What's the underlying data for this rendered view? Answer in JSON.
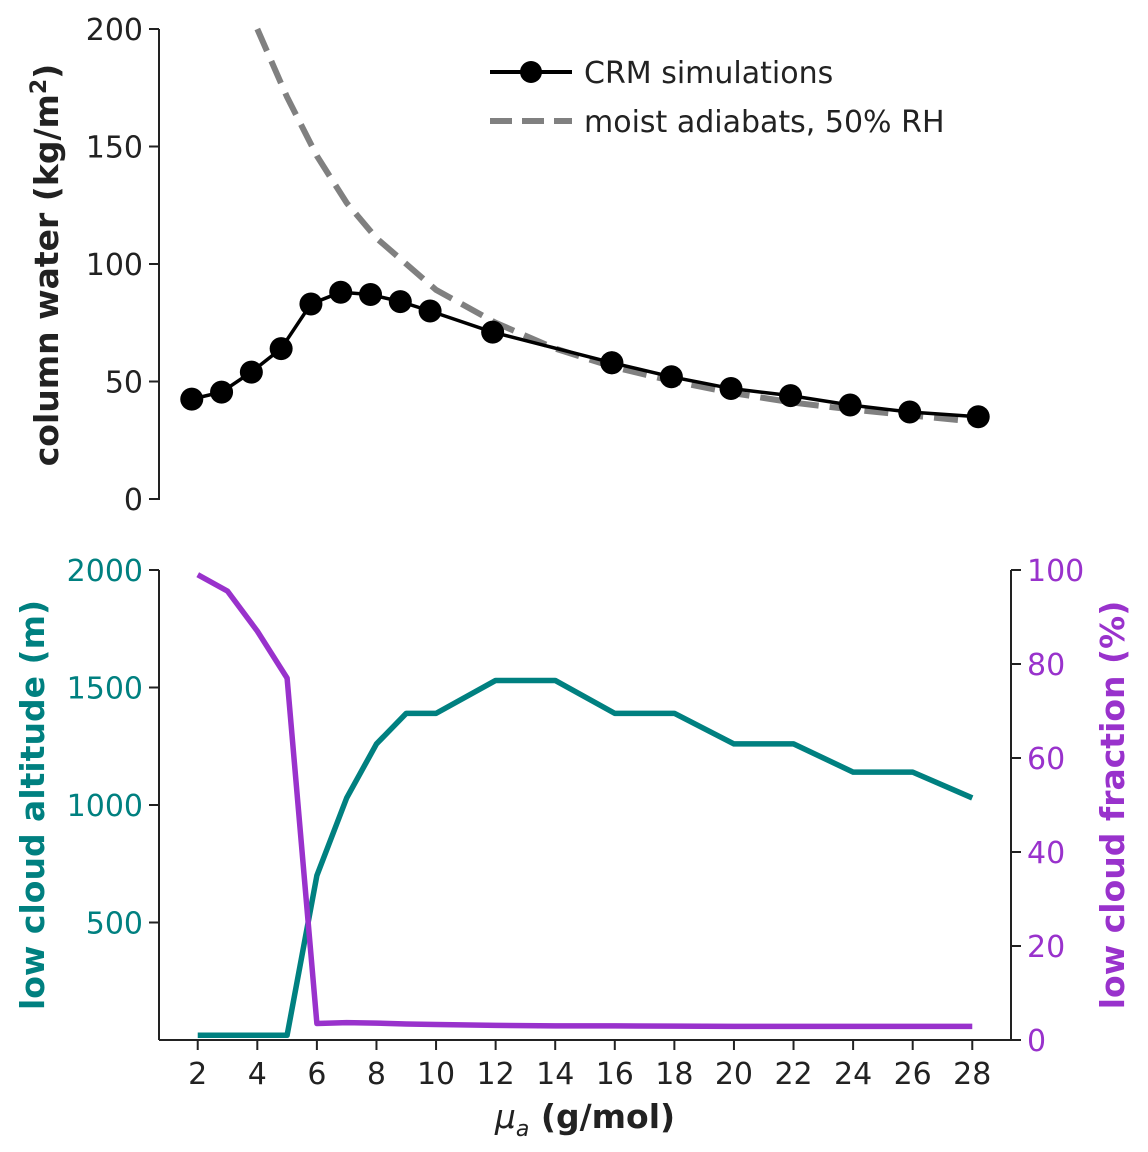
{
  "colors": {
    "text": "#222222",
    "axis": "#222222",
    "crm": "#000000",
    "adiabat": "#808080",
    "altitude": "#008080",
    "fraction": "#9932cc"
  },
  "chart_data": [
    {
      "type": "line",
      "id": "column-water",
      "title": "",
      "ylabel": "column water (kg/m",
      "ylabel_sup": "2",
      "ylabel_close": ")",
      "ylim": [
        0,
        200
      ],
      "xlim": [
        0.7,
        29.3
      ],
      "yticks": [
        0,
        50,
        100,
        150,
        200
      ],
      "legend": {
        "position": "top-right",
        "entries": [
          "CRM simulations",
          "moist adiabats, 50% RH"
        ]
      },
      "series": [
        {
          "name": "CRM simulations",
          "style": "solid-markers",
          "x": [
            1.8,
            2.8,
            3.8,
            4.8,
            5.8,
            6.8,
            7.8,
            8.8,
            9.8,
            11.9,
            15.9,
            15.9,
            17.9,
            19.9,
            21.9,
            23.9,
            25.9,
            28.2
          ],
          "y": [
            42.5,
            45.5,
            54,
            64,
            83,
            88,
            87,
            84,
            80,
            71,
            58,
            58,
            52,
            47,
            44,
            40,
            37,
            35
          ]
        },
        {
          "name": "moist adiabats, 50% RH",
          "style": "dashed",
          "x": [
            4,
            5,
            6,
            7,
            8,
            10,
            12,
            14,
            16,
            18,
            20,
            22,
            24,
            26,
            28
          ],
          "y": [
            200,
            171,
            146,
            126,
            111,
            89,
            75,
            64,
            56,
            50,
            45,
            41,
            38,
            35.5,
            33
          ]
        }
      ]
    },
    {
      "type": "line",
      "id": "low-cloud",
      "xlabel_symbol": "μ",
      "xlabel_sub": "a",
      "xlabel_rest": " (g/mol)",
      "ylabel_left": "low cloud altitude (m)",
      "ylabel_right": "low cloud fraction (%)",
      "xlim": [
        0.7,
        29.3
      ],
      "ylim_left": [
        0,
        2000
      ],
      "ylim_right": [
        0,
        100
      ],
      "xticks": [
        2,
        4,
        6,
        8,
        10,
        12,
        14,
        16,
        18,
        20,
        22,
        24,
        26,
        28
      ],
      "yticks_left": [
        500,
        1000,
        1500,
        2000
      ],
      "yticks_right": [
        0,
        20,
        40,
        60,
        80,
        100
      ],
      "series": [
        {
          "name": "low cloud altitude",
          "axis": "left",
          "x": [
            2,
            3,
            4,
            5,
            6,
            7,
            8,
            9,
            10,
            12,
            14,
            16,
            18,
            20,
            22,
            24,
            26,
            28
          ],
          "y": [
            20,
            20,
            20,
            20,
            700,
            1030,
            1260,
            1390,
            1390,
            1530,
            1530,
            1390,
            1390,
            1260,
            1260,
            1140,
            1140,
            1030
          ]
        },
        {
          "name": "low cloud fraction",
          "axis": "right",
          "x": [
            2,
            3,
            4,
            5,
            6,
            7,
            8,
            9,
            10,
            12,
            14,
            16,
            18,
            20,
            22,
            24,
            26,
            28
          ],
          "y": [
            99,
            95.5,
            87,
            77,
            3.5,
            3.7,
            3.6,
            3.4,
            3.3,
            3.1,
            3,
            3,
            2.95,
            2.9,
            2.9,
            2.9,
            2.9,
            2.9
          ]
        }
      ]
    }
  ]
}
